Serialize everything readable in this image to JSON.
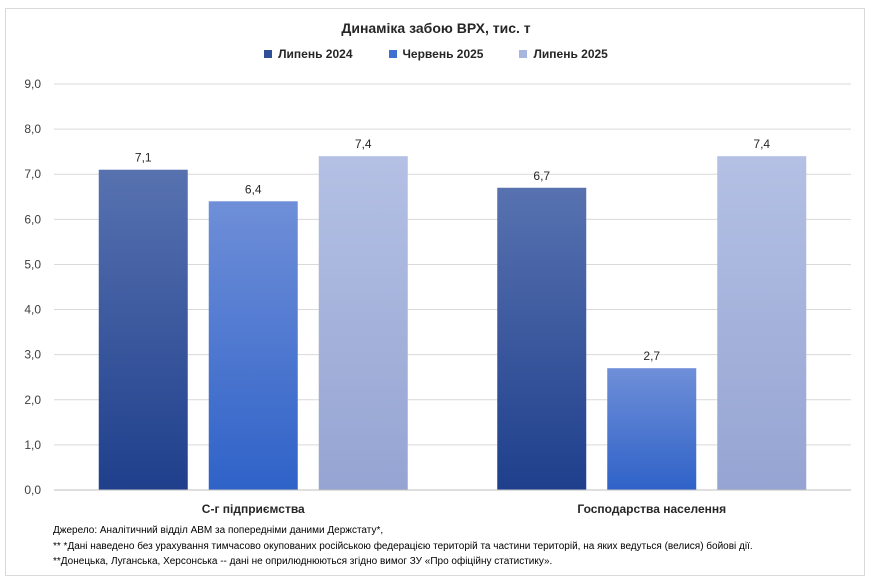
{
  "chart_data": {
    "type": "bar",
    "title": "Динаміка забою ВРХ, тис. т",
    "categories": [
      "С-г підприємства",
      "Господарства населення"
    ],
    "series": [
      {
        "name": "Липень 2024",
        "values": [
          7.1,
          6.7
        ],
        "color": "#2f4f96"
      },
      {
        "name": "Червень 2025",
        "values": [
          6.4,
          2.7
        ],
        "color": "#3f6fd0"
      },
      {
        "name": "Липень 2025",
        "values": [
          7.4,
          7.4
        ],
        "color": "#a8b6df"
      }
    ],
    "data_labels": [
      [
        "7,1",
        "6,7"
      ],
      [
        "6,4",
        "2,7"
      ],
      [
        "7,4",
        "7,4"
      ]
    ],
    "ylim": [
      0,
      9
    ],
    "y_ticks": [
      "0,0",
      "1,0",
      "2,0",
      "3,0",
      "4,0",
      "5,0",
      "6,0",
      "7,0",
      "8,0",
      "9,0"
    ],
    "grid": true,
    "legend_position": "top"
  },
  "notes": [
    "Джерело:  Аналітичний відділ АВМ за попередніми даними Держстату*,",
    "** *Дані наведено  без урахування тимчасово окупованих російською федерацією територій та частини територій, на яких ведуться  (велися) бойові дії.",
    "**Донецька,  Луганська, Херсонська -- дані не оприлюднюються  згідно вимог ЗУ «Про офіційну статистику»."
  ]
}
